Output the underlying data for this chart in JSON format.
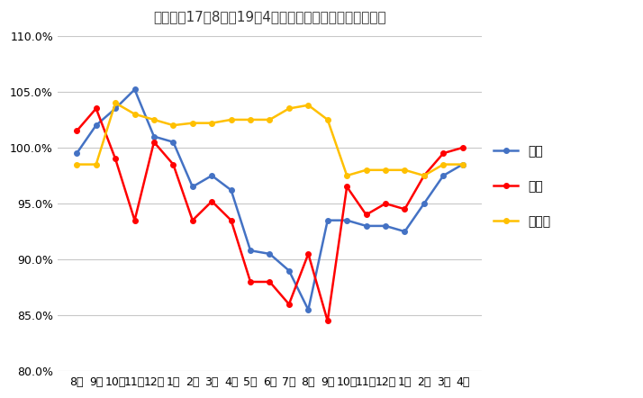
{
  "title": "鳥貴族【17年8月～19年4月】売上・客数・客単価の推移",
  "x_labels": [
    "8月",
    "9月",
    "10月",
    "11月",
    "12月",
    "1月",
    "2月",
    "3月",
    "4月",
    "5月",
    "6月",
    "7月",
    "8月",
    "9月",
    "10月",
    "11月",
    "12月",
    "1月",
    "2月",
    "3月",
    "4月"
  ],
  "uriagedaka": [
    99.5,
    102.0,
    103.5,
    105.2,
    101.0,
    100.5,
    96.5,
    97.5,
    96.2,
    90.8,
    90.5,
    89.0,
    85.5,
    93.5,
    93.5,
    93.0,
    93.0,
    92.5,
    95.0,
    97.5,
    98.5
  ],
  "kyakusuu": [
    101.5,
    103.5,
    99.0,
    93.5,
    100.5,
    98.5,
    93.5,
    95.2,
    93.5,
    88.0,
    88.0,
    86.0,
    90.5,
    84.5,
    96.5,
    94.0,
    95.0,
    94.5,
    97.5,
    99.5,
    100.0
  ],
  "kyakutanka": [
    98.5,
    98.5,
    104.0,
    103.0,
    102.5,
    102.0,
    102.2,
    102.2,
    102.5,
    102.5,
    102.5,
    103.5,
    103.8,
    102.5,
    97.5,
    98.0,
    98.0,
    98.0,
    97.5,
    98.5,
    98.5
  ],
  "uriagedaka_color": "#4472C4",
  "kyakusuu_color": "#FF0000",
  "kyakutanka_color": "#FFC000",
  "legend_labels": [
    "売上",
    "客数",
    "客単価"
  ],
  "ylim": [
    80.0,
    110.0
  ],
  "yticks": [
    80.0,
    85.0,
    90.0,
    95.0,
    100.0,
    105.0,
    110.0
  ],
  "background_color": "#FFFFFF",
  "grid_color": "#C8C8C8"
}
